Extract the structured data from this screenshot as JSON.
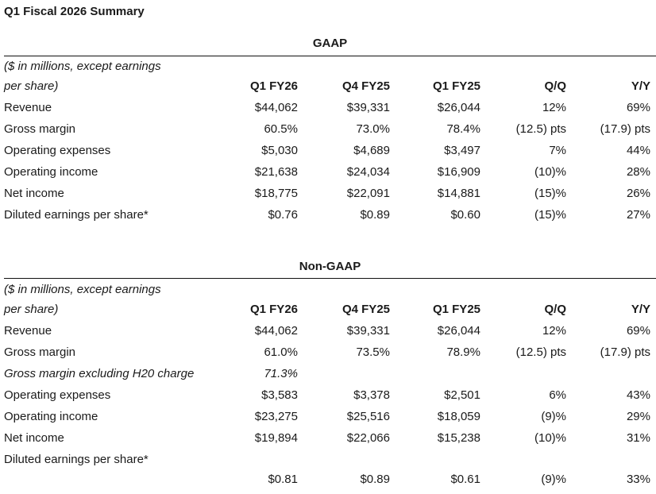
{
  "title": "Q1 Fiscal 2026 Summary",
  "columns": [
    "Q1 FY26",
    "Q4 FY25",
    "Q1 FY25",
    "Q/Q",
    "Y/Y"
  ],
  "note_line1": "($ in millions, except earnings",
  "note_line2": "per share)",
  "gaap": {
    "heading": "GAAP",
    "rows": [
      {
        "label": "Revenue",
        "values": [
          "$44,062",
          "$39,331",
          "$26,044",
          "12%",
          "69%"
        ]
      },
      {
        "label": "Gross margin",
        "values": [
          "60.5%",
          "73.0%",
          "78.4%",
          "(12.5) pts",
          "(17.9) pts"
        ]
      },
      {
        "label": "Operating expenses",
        "values": [
          "$5,030",
          "$4,689",
          "$3,497",
          "7%",
          "44%"
        ]
      },
      {
        "label": "Operating income",
        "values": [
          "$21,638",
          "$24,034",
          "$16,909",
          "(10)%",
          "28%"
        ]
      },
      {
        "label": "Net income",
        "values": [
          "$18,775",
          "$22,091",
          "$14,881",
          "(15)%",
          "26%"
        ]
      },
      {
        "label": "Diluted earnings per share*",
        "values": [
          "$0.76",
          "$0.89",
          "$0.60",
          "(15)%",
          "27%"
        ]
      }
    ]
  },
  "nongaap": {
    "heading": "Non-GAAP",
    "rows": [
      {
        "label": "Revenue",
        "values": [
          "$44,062",
          "$39,331",
          "$26,044",
          "12%",
          "69%"
        ]
      },
      {
        "label": "Gross margin",
        "values": [
          "61.0%",
          "73.5%",
          "78.9%",
          "(12.5) pts",
          "(17.9) pts"
        ]
      },
      {
        "label": "Gross margin excluding H20 charge",
        "values": [
          "71.3%",
          "",
          "",
          "",
          ""
        ],
        "italic": true
      },
      {
        "label": "Operating expenses",
        "values": [
          "$3,583",
          "$3,378",
          "$2,501",
          "6%",
          "43%"
        ]
      },
      {
        "label": "Operating income",
        "values": [
          "$23,275",
          "$25,516",
          "$18,059",
          "(9)%",
          "29%"
        ]
      },
      {
        "label": "Net income",
        "values": [
          "$19,894",
          "$22,066",
          "$15,238",
          "(10)%",
          "31%"
        ]
      },
      {
        "label": "Diluted earnings per share*",
        "values": [
          "",
          "",
          "",
          "",
          ""
        ]
      },
      {
        "label": "",
        "values": [
          "$0.81",
          "$0.89",
          "$0.61",
          "(9)%",
          "33%"
        ]
      }
    ]
  }
}
